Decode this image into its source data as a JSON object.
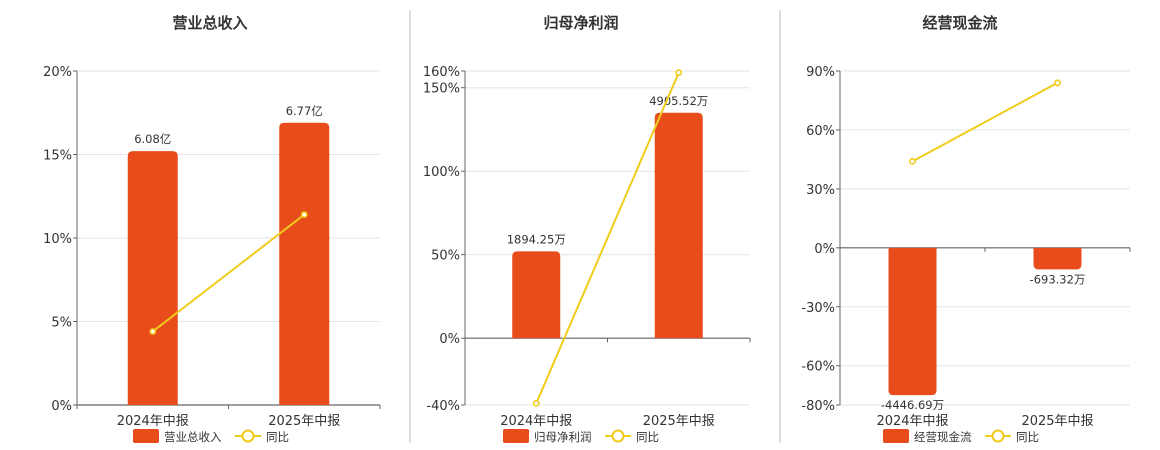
{
  "colors": {
    "bar": "#E84C1A",
    "line": "#F0CC1A",
    "grid": "#E6E6E6",
    "axis": "#666666",
    "divider": "#BBBBBB",
    "text": "#333333"
  },
  "chart_data": [
    {
      "type": "bar",
      "title": "营业总收入",
      "categories": [
        "2024年中报",
        "2025年中报"
      ],
      "y_ticks": [
        "0%",
        "5%",
        "10%",
        "15%",
        "20%"
      ],
      "ylim": [
        0,
        20
      ],
      "series": [
        {
          "name": "营业总收入",
          "type": "bar",
          "values": [
            15.2,
            16.9
          ],
          "labels": [
            "6.08亿",
            "6.77亿"
          ]
        },
        {
          "name": "同比",
          "type": "line",
          "values": [
            4.4,
            11.4
          ]
        }
      ],
      "legend": [
        "营业总收入",
        "同比"
      ],
      "legend_position": "bottom",
      "grid": true
    },
    {
      "type": "bar",
      "title": "归母净利润",
      "categories": [
        "2024年中报",
        "2025年中报"
      ],
      "y_ticks": [
        "-40%",
        "0%",
        "50%",
        "100%",
        "150%",
        "160%"
      ],
      "ylim": [
        -40,
        160
      ],
      "series": [
        {
          "name": "归母净利润",
          "type": "bar",
          "values": [
            52,
            135
          ],
          "labels": [
            "1894.25万",
            "4905.52万"
          ]
        },
        {
          "name": "同比",
          "type": "line",
          "values": [
            -39,
            159
          ]
        }
      ],
      "legend": [
        "归母净利润",
        "同比"
      ],
      "legend_position": "bottom",
      "grid": true
    },
    {
      "type": "bar",
      "title": "经营现金流",
      "categories": [
        "2024年中报",
        "2025年中报"
      ],
      "y_ticks": [
        "-80%",
        "-60%",
        "-30%",
        "0%",
        "30%",
        "60%",
        "90%"
      ],
      "ylim": [
        -80,
        90
      ],
      "series": [
        {
          "name": "经营现金流",
          "type": "bar",
          "values": [
            -75,
            -11
          ],
          "labels": [
            "-4446.69万",
            "-693.32万"
          ]
        },
        {
          "name": "同比",
          "type": "line",
          "values": [
            44,
            84
          ]
        }
      ],
      "legend": [
        "经营现金流",
        "同比"
      ],
      "legend_position": "bottom",
      "grid": true
    }
  ]
}
